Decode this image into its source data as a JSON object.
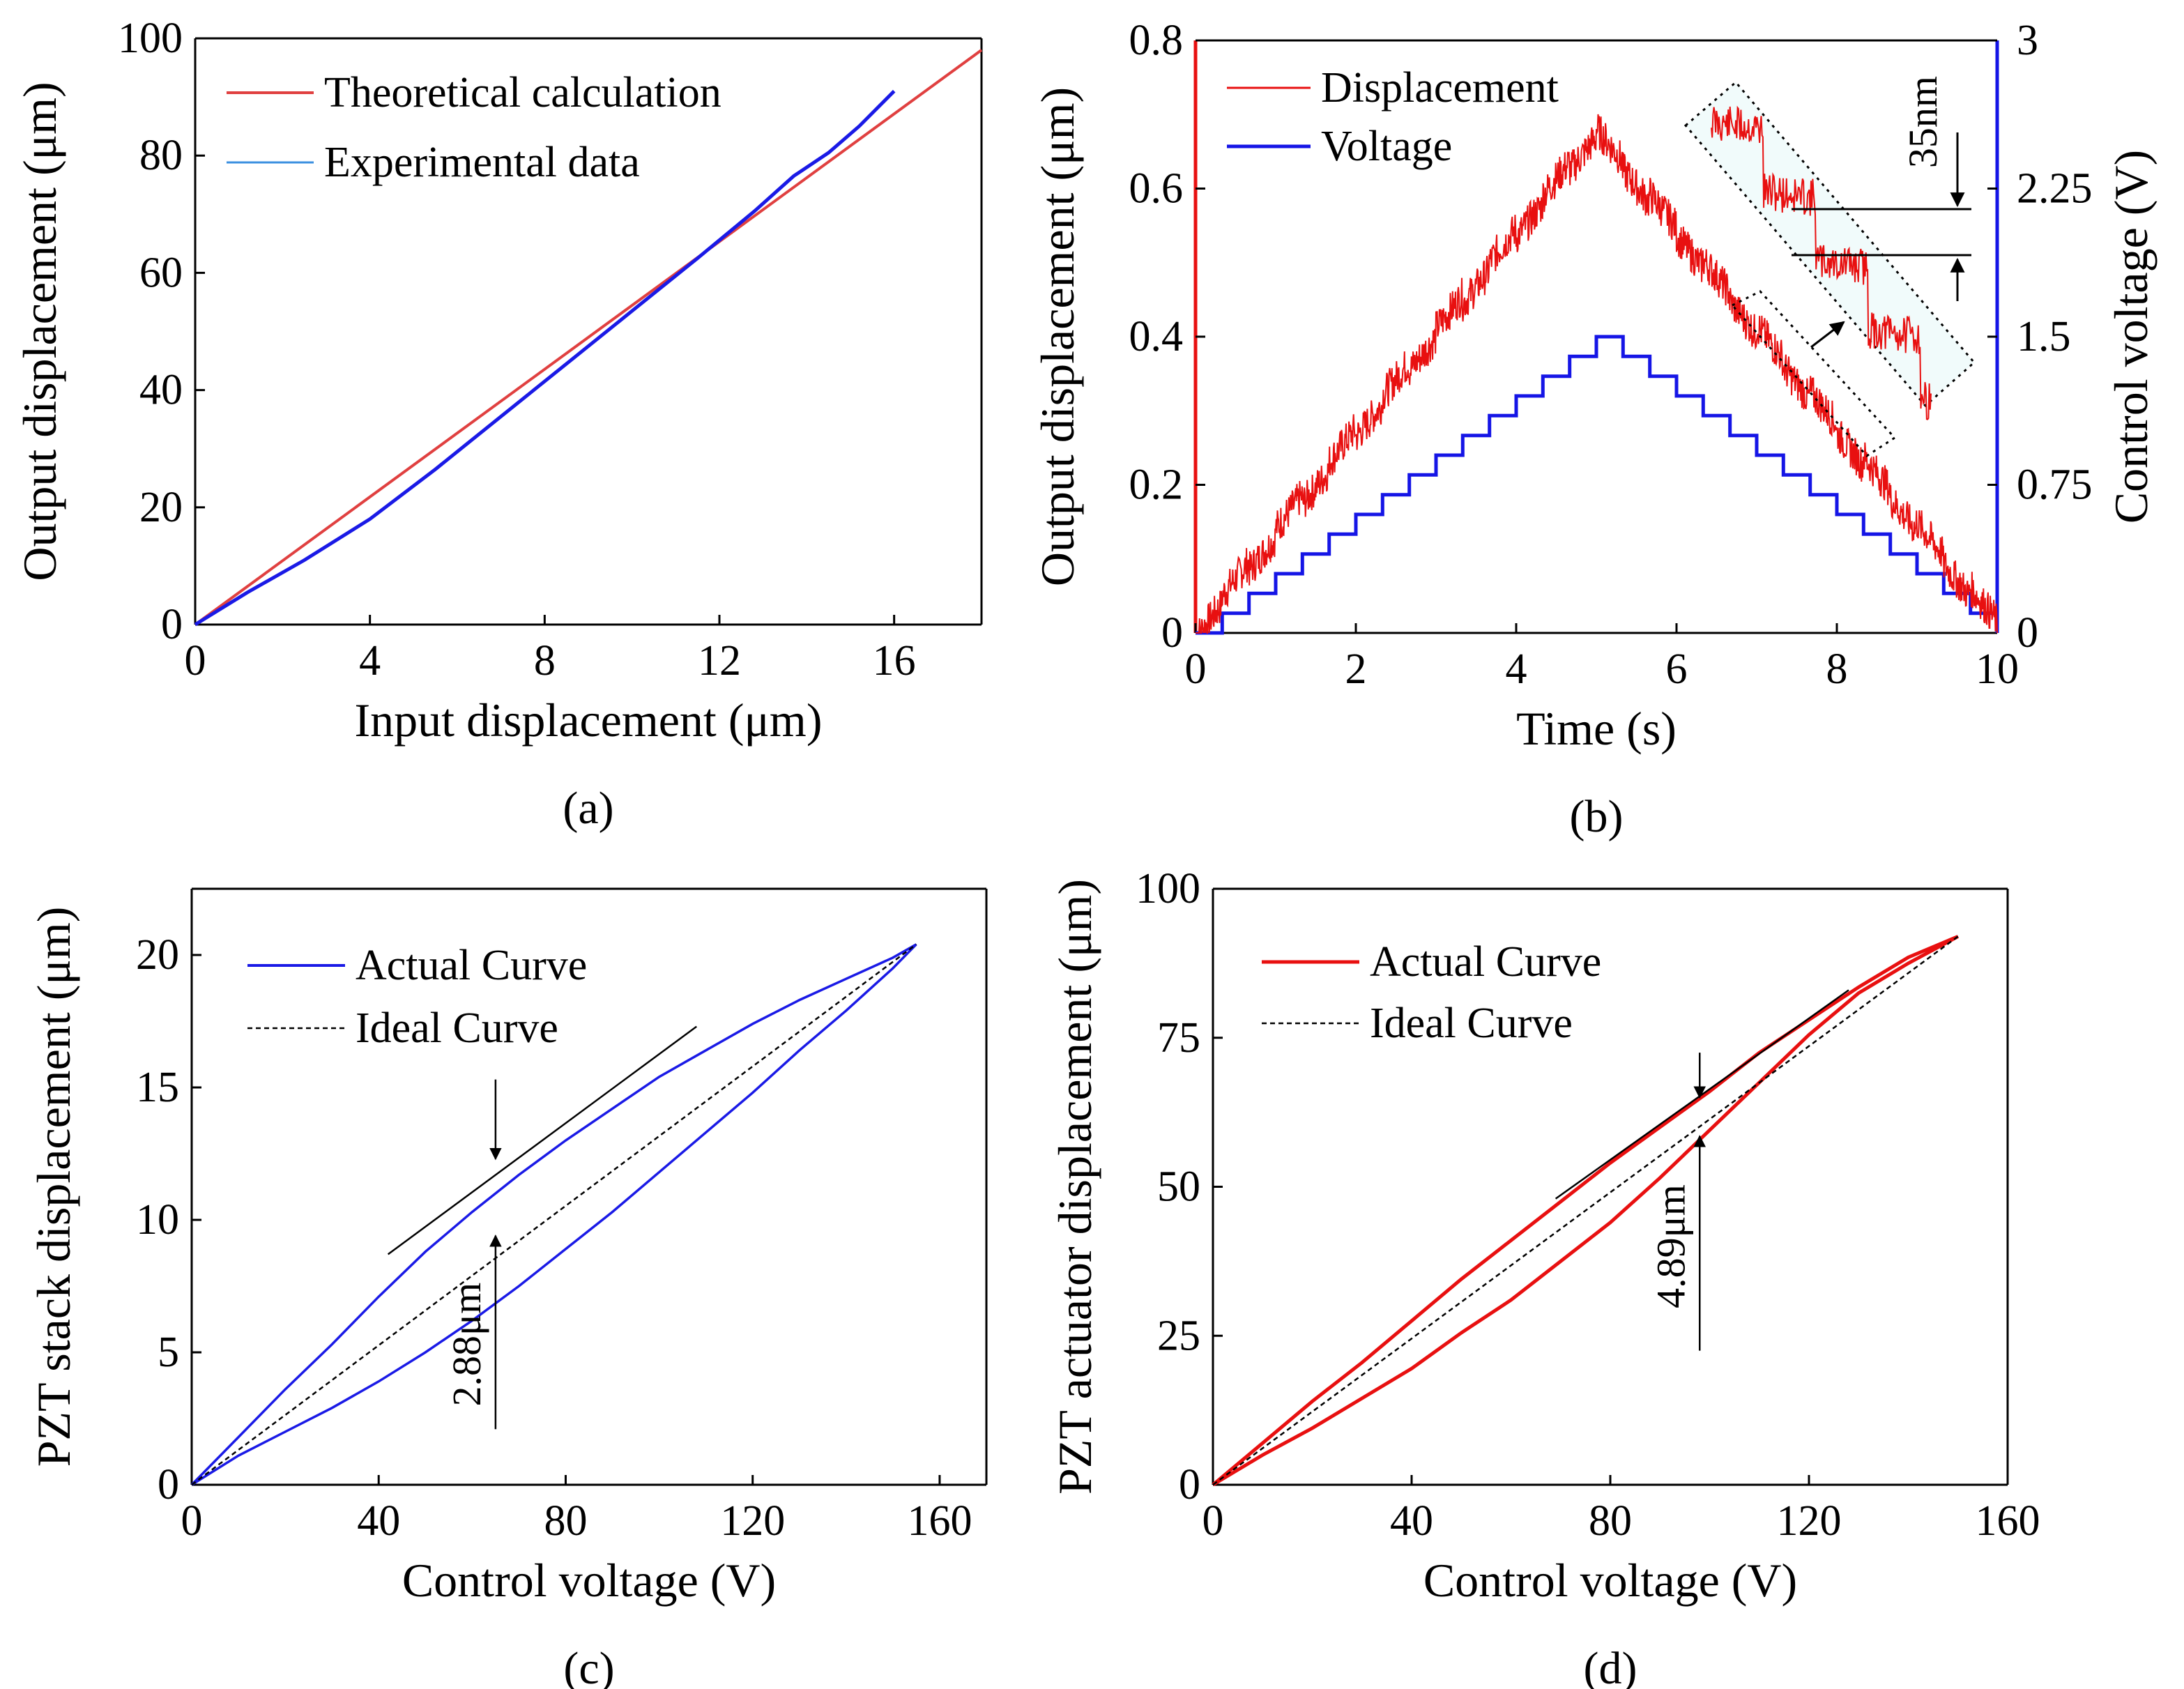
{
  "chart_data": [
    {
      "id": "a",
      "type": "line",
      "panel_label": "(a)",
      "xlabel": "Input displacement (μm)",
      "ylabel": "Output displacement (μm)",
      "xlim": [
        0,
        18
      ],
      "ylim": [
        0,
        100
      ],
      "xticks": [
        0,
        4,
        8,
        12,
        16
      ],
      "yticks": [
        0,
        20,
        40,
        60,
        80,
        100
      ],
      "legend_position": "top-left",
      "series": [
        {
          "name": "Theoretical calculation",
          "color": "#e04040",
          "x": [
            0,
            18
          ],
          "y": [
            0,
            98
          ]
        },
        {
          "name": "Experimental data",
          "color": "#1a1ae6",
          "x": [
            0,
            1.2,
            2.5,
            4,
            5.5,
            7,
            8.5,
            10,
            11.5,
            12.8,
            13.7,
            14.5,
            15.2,
            16
          ],
          "y": [
            0,
            5.5,
            11,
            18,
            26.5,
            35.5,
            44.5,
            53.5,
            62.5,
            70.5,
            76.5,
            80.5,
            85,
            91
          ]
        }
      ]
    },
    {
      "id": "b",
      "type": "line",
      "panel_label": "(b)",
      "xlabel": "Time (s)",
      "ylabel": "Output displacement (μm)",
      "y2label": "Control voltage (V)",
      "xlim": [
        0,
        10
      ],
      "ylim": [
        0,
        0.8
      ],
      "y2lim": [
        0,
        3
      ],
      "xticks": [
        0,
        2,
        4,
        6,
        8,
        10
      ],
      "yticks": [
        0,
        0.2,
        0.4,
        0.6,
        0.8
      ],
      "ytick_labels": [
        "0",
        "0.2",
        "0.4",
        "0.6",
        "0.8"
      ],
      "y2ticks": [
        0,
        0.75,
        1.5,
        2.25,
        3
      ],
      "y2tick_labels": [
        "0",
        "0.75",
        "1.5",
        "2.25",
        "3"
      ],
      "legend_position": "top-left",
      "series": [
        {
          "name": "Displacement",
          "color": "#e81010",
          "axis": "left",
          "shape": "triangle",
          "peak_time": 5,
          "peak_value": 0.675,
          "end_value": 0.01
        },
        {
          "name": "Voltage",
          "color": "#1515e6",
          "axis": "right",
          "shape": "staircase",
          "step_count": 15,
          "step_duration_s": 0.333,
          "peak_voltage": 1.5
        }
      ],
      "annotations": [
        "35nm"
      ]
    },
    {
      "id": "c",
      "type": "line",
      "panel_label": "(c)",
      "xlabel": "Control voltage (V)",
      "ylabel": "PZT stack displacement (μm)",
      "xlim": [
        0,
        170
      ],
      "ylim": [
        0,
        22.5
      ],
      "xticks": [
        0,
        40,
        80,
        120,
        160
      ],
      "yticks": [
        0,
        5,
        10,
        15,
        20
      ],
      "legend_position": "top-left",
      "series": [
        {
          "name": "Actual Curve",
          "color": "#1a1ae6",
          "style": "solid",
          "x": [
            0,
            10,
            20,
            30,
            40,
            50,
            60,
            70,
            80,
            90,
            100,
            110,
            120,
            130,
            140,
            150,
            155,
            150,
            140,
            130,
            120,
            110,
            100,
            90,
            80,
            70,
            60,
            50,
            40,
            30,
            20,
            10,
            0
          ],
          "y": [
            0,
            1.1,
            2.0,
            2.9,
            3.9,
            5.0,
            6.2,
            7.5,
            8.9,
            10.3,
            11.8,
            13.3,
            14.8,
            16.4,
            17.9,
            19.5,
            20.4,
            19.9,
            19.1,
            18.3,
            17.4,
            16.4,
            15.4,
            14.2,
            13.0,
            11.7,
            10.3,
            8.8,
            7.1,
            5.3,
            3.6,
            1.8,
            0
          ]
        },
        {
          "name": "Ideal Curve",
          "color": "#000000",
          "style": "dashed",
          "x": [
            0,
            155
          ],
          "y": [
            0,
            20.4
          ]
        }
      ],
      "annotations": [
        "2.88μm"
      ]
    },
    {
      "id": "d",
      "type": "line",
      "panel_label": "(d)",
      "xlabel": "Control voltage (V)",
      "ylabel": "PZT actuator displacement (μm)",
      "xlim": [
        0,
        160
      ],
      "ylim": [
        0,
        100
      ],
      "xticks": [
        0,
        40,
        80,
        120,
        160
      ],
      "yticks": [
        0,
        25,
        50,
        75,
        100
      ],
      "legend_position": "top-left",
      "series": [
        {
          "name": "Actual Curve",
          "color": "#e81010",
          "style": "solid",
          "x": [
            0,
            10,
            20,
            30,
            40,
            50,
            60,
            70,
            80,
            90,
            100,
            110,
            120,
            130,
            140,
            150,
            140,
            130,
            120,
            110,
            100,
            90,
            80,
            70,
            60,
            50,
            40,
            30,
            20,
            10,
            0
          ],
          "y": [
            0,
            5.0,
            9.5,
            14.5,
            19.5,
            25.5,
            31.0,
            37.5,
            44.0,
            51.5,
            59.5,
            67.5,
            75.5,
            82.5,
            87.5,
            92.0,
            88.5,
            83.5,
            78.0,
            72.5,
            66.0,
            60.0,
            54.0,
            47.5,
            41.0,
            34.5,
            27.5,
            20.5,
            14.0,
            7.0,
            0
          ]
        },
        {
          "name": "Ideal Curve",
          "color": "#000000",
          "style": "dashed",
          "x": [
            0,
            150
          ],
          "y": [
            0,
            92
          ]
        }
      ],
      "annotations": [
        "4.89μm"
      ]
    }
  ]
}
